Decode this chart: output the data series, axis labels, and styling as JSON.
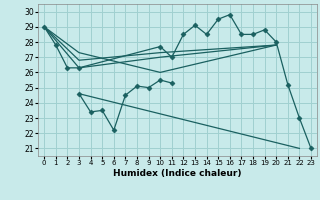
{
  "xlabel": "Humidex (Indice chaleur)",
  "bg_color": "#c8eaea",
  "grid_color": "#a0d0d0",
  "line_color": "#1a6060",
  "xlim": [
    -0.5,
    23.5
  ],
  "ylim": [
    20.5,
    30.5
  ],
  "xticks": [
    0,
    1,
    2,
    3,
    4,
    5,
    6,
    7,
    8,
    9,
    10,
    11,
    12,
    13,
    14,
    15,
    16,
    17,
    18,
    19,
    20,
    21,
    22,
    23
  ],
  "yticks": [
    21,
    22,
    23,
    24,
    25,
    26,
    27,
    28,
    29,
    30
  ],
  "series": [
    {
      "x": [
        0,
        1,
        2,
        3,
        10,
        11,
        12,
        13,
        14,
        15,
        16,
        17,
        18,
        19,
        20,
        21,
        22,
        23
      ],
      "y": [
        29,
        27.8,
        26.3,
        26.3,
        27.7,
        27.0,
        28.5,
        29.1,
        28.5,
        29.5,
        29.8,
        28.5,
        28.5,
        28.8,
        28.0,
        25.2,
        23.0,
        21.0
      ],
      "markers": true
    },
    {
      "x": [
        0,
        3,
        10,
        20
      ],
      "y": [
        29,
        26.3,
        27.0,
        27.8
      ],
      "markers": false
    },
    {
      "x": [
        0,
        3,
        10,
        20
      ],
      "y": [
        29,
        26.8,
        27.3,
        27.8
      ],
      "markers": false
    },
    {
      "x": [
        0,
        3,
        10,
        20
      ],
      "y": [
        29,
        27.3,
        26.0,
        27.8
      ],
      "markers": false
    },
    {
      "x": [
        3,
        4,
        5,
        6,
        7,
        8,
        9,
        10,
        11
      ],
      "y": [
        24.6,
        23.4,
        23.5,
        22.2,
        24.5,
        25.1,
        25.0,
        25.5,
        25.3
      ],
      "markers": true
    },
    {
      "x": [
        3,
        22
      ],
      "y": [
        24.6,
        21.0
      ],
      "markers": false
    }
  ]
}
